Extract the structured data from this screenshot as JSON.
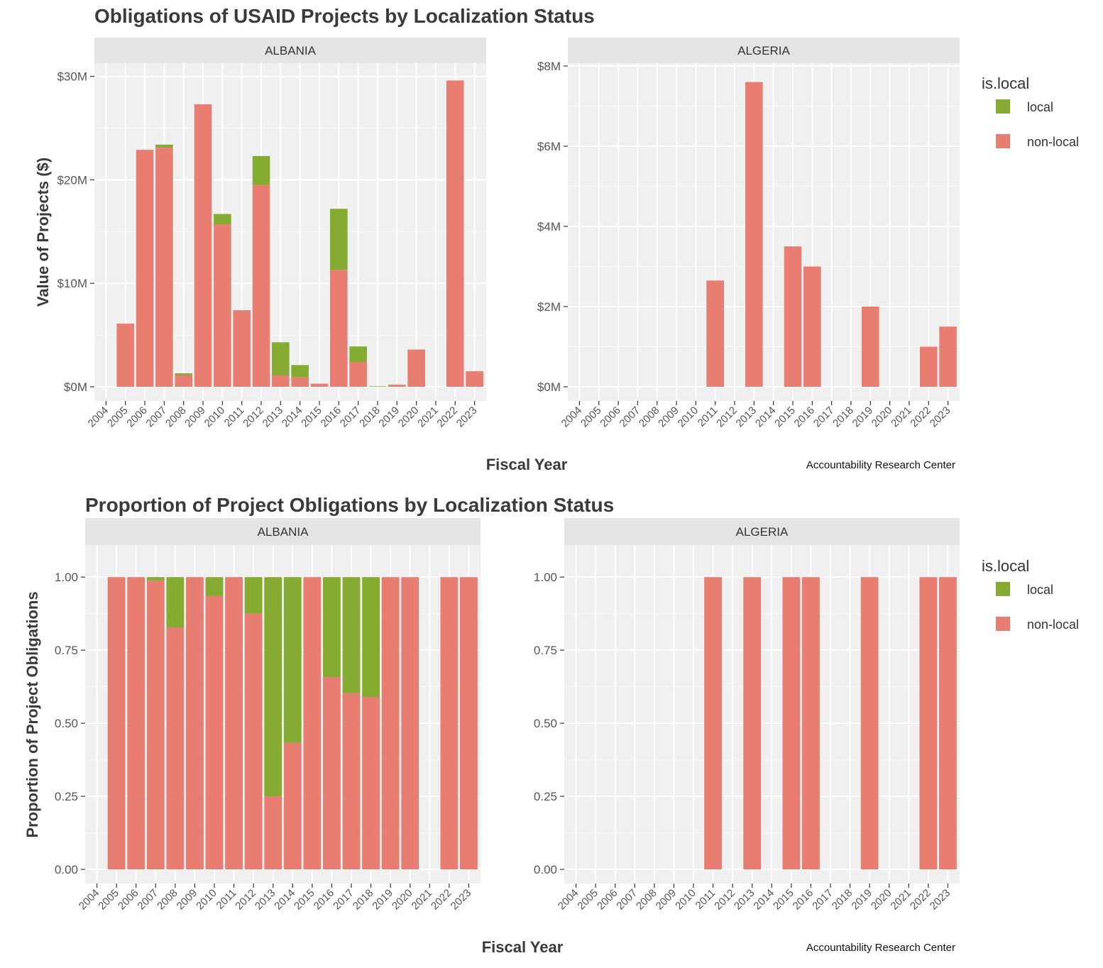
{
  "chart_data": [
    {
      "type": "bar",
      "stacked": true,
      "title": "Obligations of USAID Projects by Localization Status",
      "xlabel": "Fiscal Year",
      "ylabel": "Value of Projects ($)",
      "caption": "Accountability Research Center",
      "legend": {
        "title": "is.local",
        "position": "right",
        "entries": [
          "local",
          "non-local"
        ]
      },
      "colors": {
        "local": "#86ab33",
        "non-local": "#e87d72",
        "panel_bg": "#f0f0f0",
        "strip_bg": "#e4e4e4",
        "grid": "#ffffff"
      },
      "grid": true,
      "x_ticks": [
        "2004",
        "2005",
        "2006",
        "2007",
        "2008",
        "2009",
        "2010",
        "2011",
        "2012",
        "2013",
        "2014",
        "2015",
        "2016",
        "2017",
        "2018",
        "2019",
        "2020",
        "2021",
        "2022",
        "2023"
      ],
      "facets": [
        {
          "name": "ALBANIA",
          "ylim": [
            0,
            31000000
          ],
          "y_ticks": [
            0,
            10000000,
            20000000,
            30000000
          ],
          "y_tick_labels": [
            "$0M",
            "$10M",
            "$20M",
            "$30M"
          ],
          "x": [
            2005,
            2006,
            2007,
            2008,
            2009,
            2010,
            2011,
            2012,
            2013,
            2014,
            2015,
            2016,
            2017,
            2018,
            2019,
            2020,
            2022,
            2023
          ],
          "series": [
            {
              "name": "non-local",
              "values": [
                6100000,
                22900000,
                23100000,
                1100000,
                27300000,
                15700000,
                7400000,
                19500000,
                1100000,
                900000,
                300000,
                11300000,
                2400000,
                0,
                200000,
                3600000,
                29600000,
                1500000
              ]
            },
            {
              "name": "local",
              "values": [
                0,
                0,
                300000,
                200000,
                0,
                1000000,
                0,
                2800000,
                3200000,
                1200000,
                0,
                5900000,
                1500000,
                50000,
                0,
                0,
                0,
                0
              ]
            }
          ]
        },
        {
          "name": "ALGERIA",
          "ylim": [
            0,
            8000000
          ],
          "y_ticks": [
            0,
            2000000,
            4000000,
            6000000,
            8000000
          ],
          "y_tick_labels": [
            "$0M",
            "$2M",
            "$4M",
            "$6M",
            "$8M"
          ],
          "x": [
            2011,
            2013,
            2015,
            2016,
            2019,
            2022,
            2023
          ],
          "series": [
            {
              "name": "non-local",
              "values": [
                2650000,
                7600000,
                3500000,
                3000000,
                2000000,
                1000000,
                1500000
              ]
            },
            {
              "name": "local",
              "values": [
                0,
                0,
                0,
                0,
                0,
                0,
                0
              ]
            }
          ]
        }
      ]
    },
    {
      "type": "bar",
      "stacked": true,
      "title": "Proportion of Project Obligations by Localization Status",
      "xlabel": "Fiscal Year",
      "ylabel": "Proportion of Project Obligations",
      "caption": "Accountability Research Center",
      "legend": {
        "title": "is.local",
        "position": "right",
        "entries": [
          "local",
          "non-local"
        ]
      },
      "colors": {
        "local": "#86ab33",
        "non-local": "#e87d72",
        "panel_bg": "#f0f0f0",
        "strip_bg": "#e4e4e4",
        "grid": "#ffffff"
      },
      "grid": true,
      "x_ticks": [
        "2004",
        "2005",
        "2006",
        "2007",
        "2008",
        "2009",
        "2010",
        "2011",
        "2012",
        "2013",
        "2014",
        "2015",
        "2016",
        "2017",
        "2018",
        "2019",
        "2020",
        "2021",
        "2022",
        "2023"
      ],
      "facets": [
        {
          "name": "ALBANIA",
          "ylim": [
            0,
            1.1
          ],
          "y_ticks": [
            0,
            0.25,
            0.5,
            0.75,
            1.0
          ],
          "y_tick_labels": [
            "0.00",
            "0.25",
            "0.50",
            "0.75",
            "1.00"
          ],
          "x": [
            2005,
            2006,
            2007,
            2008,
            2009,
            2010,
            2011,
            2012,
            2013,
            2014,
            2015,
            2016,
            2017,
            2018,
            2019,
            2020,
            2022,
            2023
          ],
          "series": [
            {
              "name": "non-local",
              "values": [
                1.0,
                1.0,
                0.988,
                0.828,
                1.0,
                0.935,
                1.0,
                0.875,
                0.25,
                0.433,
                1.0,
                0.658,
                0.603,
                0.59,
                1.0,
                1.0,
                1.0,
                1.0
              ]
            },
            {
              "name": "local",
              "values": [
                0,
                0,
                0.012,
                0.172,
                0,
                0.065,
                0,
                0.125,
                0.75,
                0.567,
                0,
                0.342,
                0.397,
                0.41,
                0,
                0,
                0,
                0
              ]
            }
          ]
        },
        {
          "name": "ALGERIA",
          "ylim": [
            0,
            1.1
          ],
          "y_ticks": [
            0,
            0.25,
            0.5,
            0.75,
            1.0
          ],
          "y_tick_labels": [
            "0.00",
            "0.25",
            "0.50",
            "0.75",
            "1.00"
          ],
          "x": [
            2011,
            2013,
            2015,
            2016,
            2019,
            2022,
            2023
          ],
          "series": [
            {
              "name": "non-local",
              "values": [
                1.0,
                1.0,
                1.0,
                1.0,
                1.0,
                1.0,
                1.0
              ]
            },
            {
              "name": "local",
              "values": [
                0,
                0,
                0,
                0,
                0,
                0,
                0
              ]
            }
          ]
        }
      ]
    }
  ]
}
